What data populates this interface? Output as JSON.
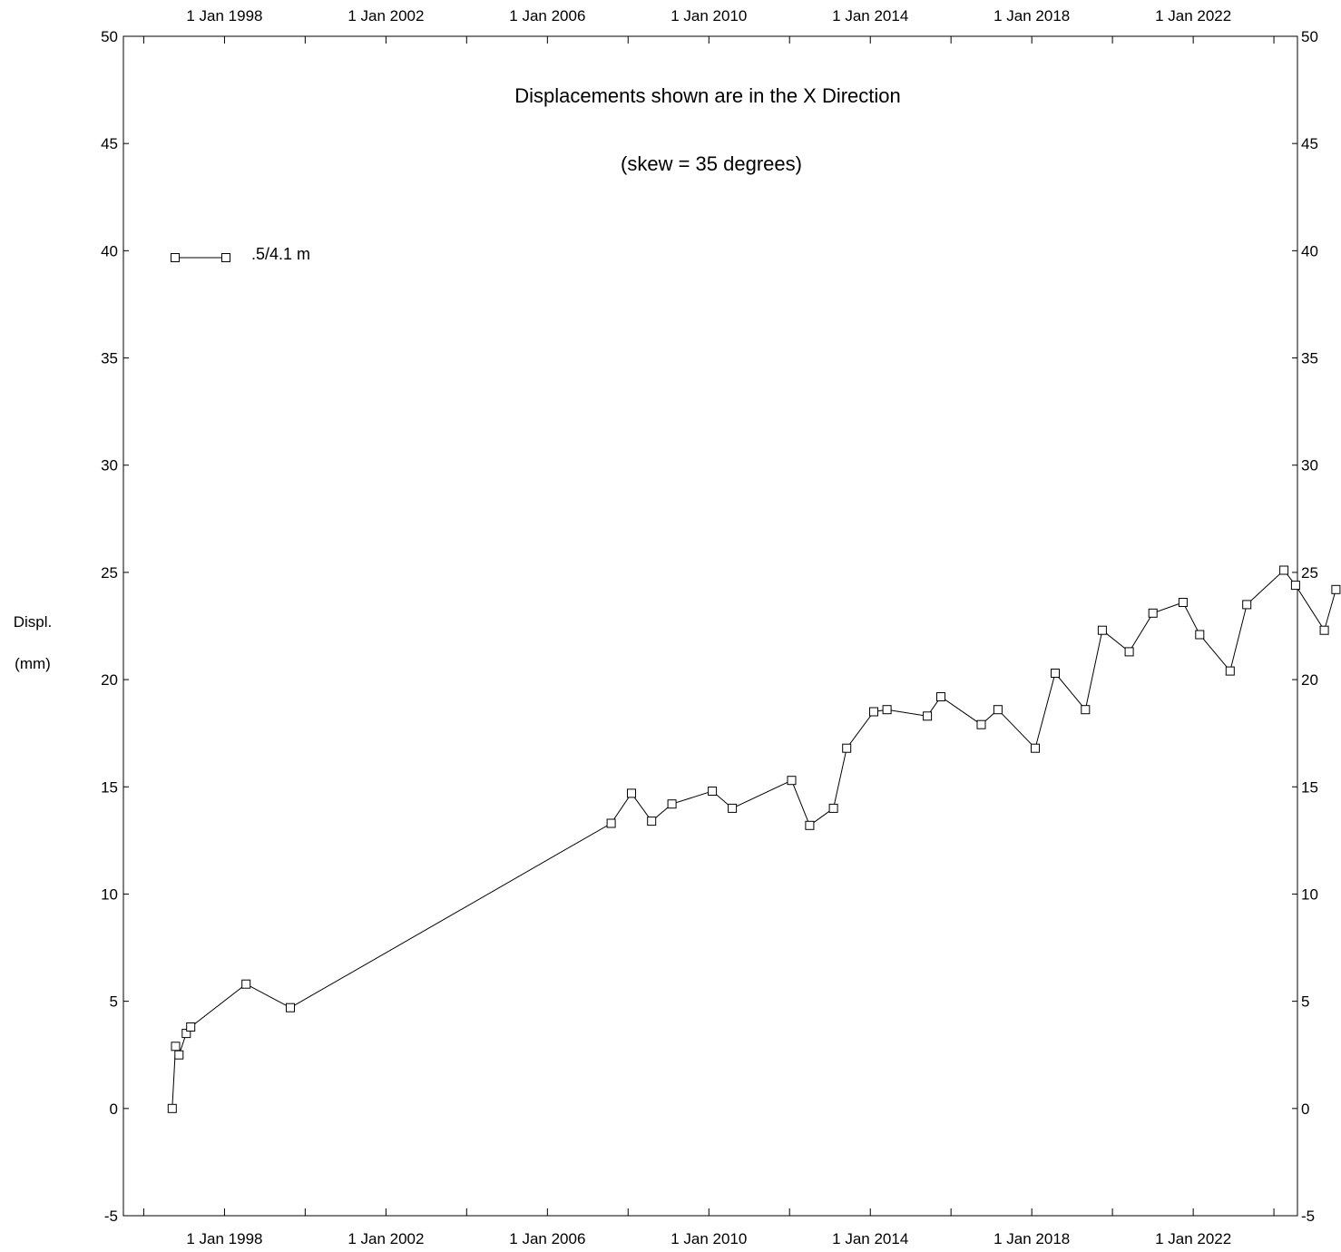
{
  "chart_data": {
    "type": "line",
    "title": "Displacements shown are in the  X Direction",
    "subtitle": "(skew = 35 degrees)",
    "ylabel_line1": "Displ.",
    "ylabel_line2": "(mm)",
    "ylim": [
      -5,
      50
    ],
    "yticks": [
      -5,
      0,
      5,
      10,
      15,
      20,
      25,
      30,
      35,
      40,
      45,
      50
    ],
    "xlim": [
      "1995-07-01",
      "2024-08-01"
    ],
    "xtick_labels": [
      {
        "date": "1998-01-01",
        "label": "1 Jan 1998"
      },
      {
        "date": "2002-01-01",
        "label": "1 Jan 2002"
      },
      {
        "date": "2006-01-01",
        "label": "1 Jan 2006"
      },
      {
        "date": "2010-01-01",
        "label": "1 Jan 2010"
      },
      {
        "date": "2014-01-01",
        "label": "1 Jan 2014"
      },
      {
        "date": "2018-01-01",
        "label": "1 Jan 2018"
      },
      {
        "date": "2022-01-01",
        "label": "1 Jan 2022"
      }
    ],
    "grid": false,
    "legend_placement": "top-left",
    "series": [
      {
        "name": ".5/4.1 m",
        "marker": "square",
        "points": [
          {
            "x": "1996-09-15",
            "y": 0.0
          },
          {
            "x": "1996-10-15",
            "y": 2.9
          },
          {
            "x": "1996-11-15",
            "y": 2.5
          },
          {
            "x": "1997-01-20",
            "y": 3.5
          },
          {
            "x": "1997-03-01",
            "y": 3.8
          },
          {
            "x": "1998-07-15",
            "y": 5.8
          },
          {
            "x": "1999-08-20",
            "y": 4.7
          },
          {
            "x": "2007-08-01",
            "y": 13.3
          },
          {
            "x": "2008-02-01",
            "y": 14.7
          },
          {
            "x": "2008-08-01",
            "y": 13.4
          },
          {
            "x": "2009-02-01",
            "y": 14.2
          },
          {
            "x": "2010-02-01",
            "y": 14.8
          },
          {
            "x": "2010-08-01",
            "y": 14.0
          },
          {
            "x": "2012-01-20",
            "y": 15.3
          },
          {
            "x": "2012-07-01",
            "y": 13.2
          },
          {
            "x": "2013-02-01",
            "y": 14.0
          },
          {
            "x": "2013-06-01",
            "y": 16.8
          },
          {
            "x": "2014-02-01",
            "y": 18.5
          },
          {
            "x": "2014-06-01",
            "y": 18.6
          },
          {
            "x": "2015-06-01",
            "y": 18.3
          },
          {
            "x": "2015-10-01",
            "y": 19.2
          },
          {
            "x": "2016-10-01",
            "y": 17.9
          },
          {
            "x": "2017-03-01",
            "y": 18.6
          },
          {
            "x": "2018-02-01",
            "y": 16.8
          },
          {
            "x": "2018-08-01",
            "y": 20.3
          },
          {
            "x": "2019-05-01",
            "y": 18.6
          },
          {
            "x": "2019-10-01",
            "y": 22.3
          },
          {
            "x": "2020-06-01",
            "y": 21.3
          },
          {
            "x": "2021-01-01",
            "y": 23.1
          },
          {
            "x": "2021-10-01",
            "y": 23.6
          },
          {
            "x": "2022-03-01",
            "y": 22.1
          },
          {
            "x": "2022-12-01",
            "y": 20.4
          },
          {
            "x": "2023-05-01",
            "y": 23.5
          },
          {
            "x": "2024-04-01",
            "y": 25.1
          },
          {
            "x": "2024-07-15",
            "y": 24.4
          },
          {
            "x": "2025-04-01",
            "y": 22.3
          },
          {
            "x": "2025-07-15",
            "y": 24.2
          }
        ]
      }
    ]
  }
}
